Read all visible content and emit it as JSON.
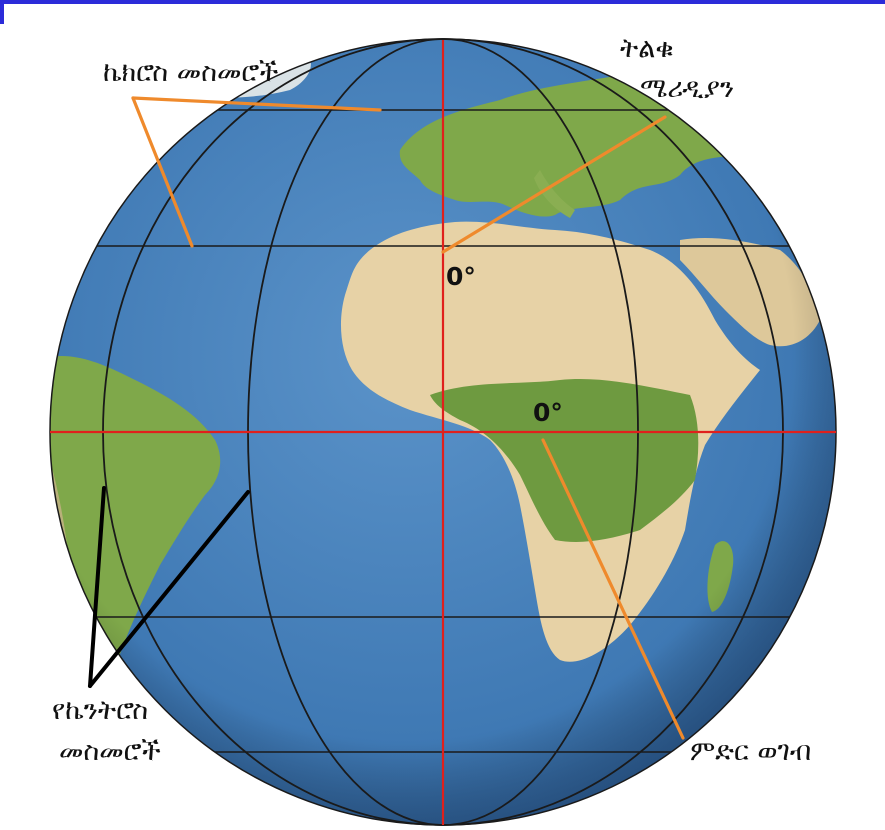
{
  "labels": {
    "latitude_lines": "ኬክሮስ  መስመሮች",
    "prime_meridian_line1": "ትልቁ",
    "prime_meridian_line2": "ሜሪዲያን",
    "longitude_lines_line1": "የኬንትሮስ",
    "longitude_lines_line2": "መስመሮች",
    "equator": "ምድር  ወገብ",
    "degree_prime": "0°",
    "degree_equator": "0°"
  },
  "colors": {
    "ocean": "#3f79b4",
    "land_desert": "#e7d2a6",
    "land_green": "#7fa84a",
    "grid_black": "#1a1a1a",
    "grid_red": "#e0201c",
    "pointer_orange": "#ef8a2c",
    "pointer_black": "#000000",
    "frame_blue": "#2b2bd9"
  }
}
